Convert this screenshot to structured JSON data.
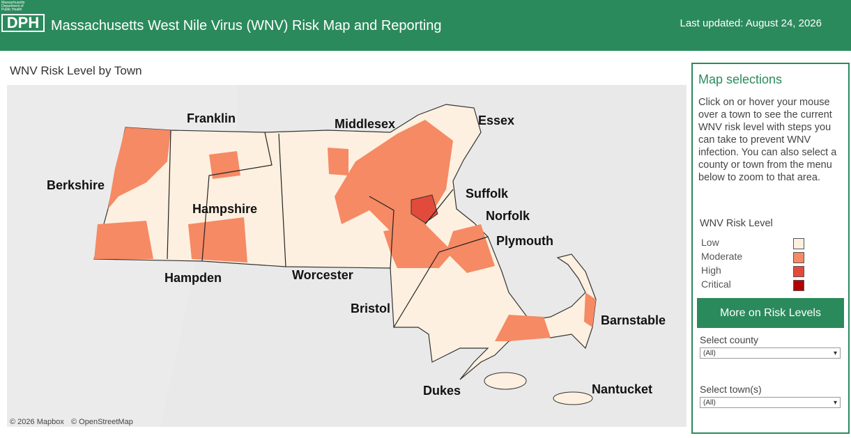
{
  "header": {
    "logo_small": "Massachusetts Department of Public Health",
    "logo_text": "DPH",
    "title": "Massachusetts West Nile Virus (WNV) Risk Map and Reporting",
    "last_updated": "Last updated: August 24, 2026"
  },
  "map": {
    "title": "WNV Risk Level by Town",
    "county_labels": [
      "Franklin",
      "Middlesex",
      "Essex",
      "Berkshire",
      "Suffolk",
      "Hampshire",
      "Norfolk",
      "Plymouth",
      "Hampden",
      "Worcester",
      "Bristol",
      "Barnstable",
      "Dukes",
      "Nantucket"
    ],
    "attribution": [
      "© 2026 Mapbox",
      "© OpenStreetMap"
    ]
  },
  "sidebar": {
    "title": "Map selections",
    "description": "Click on or hover your mouse over a town to see the current WNV risk level with steps you can take to prevent WNV infection. You can also select a county or town from the menu below to zoom to that area.",
    "legend": {
      "title": "WNV Risk Level",
      "items": [
        {
          "label": "Low",
          "color": "#fdf0e0"
        },
        {
          "label": "Moderate",
          "color": "#f58a64"
        },
        {
          "label": "High",
          "color": "#e24b3b"
        },
        {
          "label": "Critical",
          "color": "#b30000"
        }
      ]
    },
    "button": "More on Risk Levels",
    "selects": [
      {
        "label": "Select county",
        "value": "(All)"
      },
      {
        "label": "Select town(s)",
        "value": "(All)"
      }
    ]
  }
}
